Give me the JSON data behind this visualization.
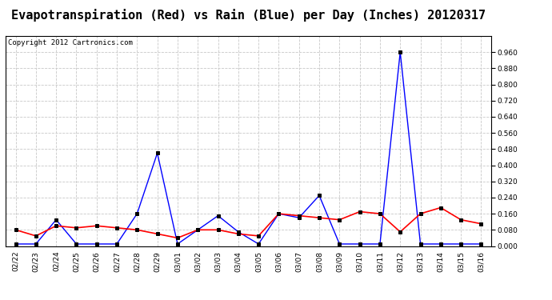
{
  "title": "Evapotranspiration (Red) vs Rain (Blue) per Day (Inches) 20120317",
  "copyright": "Copyright 2012 Cartronics.com",
  "labels": [
    "02/22",
    "02/23",
    "02/24",
    "02/25",
    "02/26",
    "02/27",
    "02/28",
    "02/29",
    "03/01",
    "03/02",
    "03/03",
    "03/04",
    "03/05",
    "03/06",
    "03/07",
    "03/08",
    "03/09",
    "03/10",
    "03/11",
    "03/12",
    "03/13",
    "03/14",
    "03/15",
    "03/16"
  ],
  "rain": [
    0.01,
    0.01,
    0.13,
    0.01,
    0.01,
    0.01,
    0.16,
    0.46,
    0.01,
    0.08,
    0.15,
    0.07,
    0.01,
    0.16,
    0.14,
    0.25,
    0.01,
    0.01,
    0.01,
    0.96,
    0.01,
    0.01,
    0.01,
    0.01
  ],
  "et": [
    0.08,
    0.05,
    0.1,
    0.09,
    0.1,
    0.09,
    0.08,
    0.06,
    0.04,
    0.08,
    0.08,
    0.06,
    0.05,
    0.16,
    0.15,
    0.14,
    0.13,
    0.17,
    0.16,
    0.07,
    0.16,
    0.19,
    0.13,
    0.11
  ],
  "rain_color": "#0000ff",
  "et_color": "#ff0000",
  "marker_color": "#000000",
  "bg_color": "#ffffff",
  "grid_color": "#c8c8c8",
  "ylim": [
    0.0,
    1.04
  ],
  "yticks": [
    0.0,
    0.08,
    0.16,
    0.24,
    0.32,
    0.4,
    0.48,
    0.56,
    0.64,
    0.72,
    0.8,
    0.88,
    0.96
  ],
  "title_fontsize": 11,
  "copyright_fontsize": 6.5,
  "tick_fontsize": 6.5
}
